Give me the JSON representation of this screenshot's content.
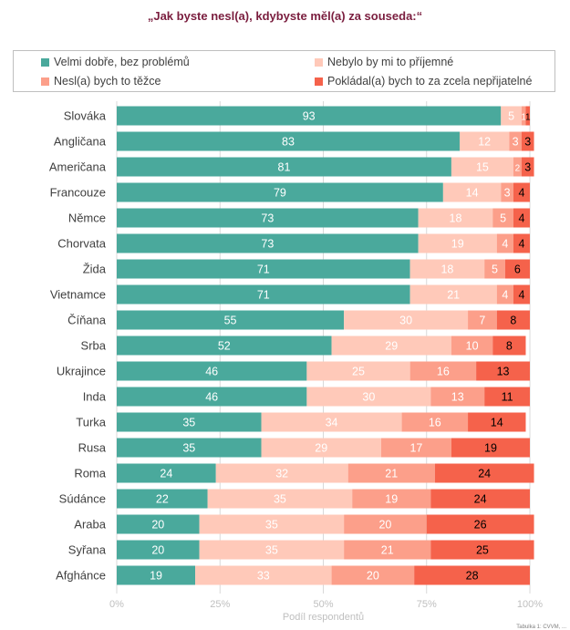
{
  "title": "„Jak byste nesl(a), kdybyste měl(a) za souseda:“",
  "footer_note": "Tabulka 1: CVVM, ...",
  "chart_data": {
    "type": "bar",
    "orientation": "horizontal",
    "stacked": true,
    "title": "„Jak byste nesl(a), kdybyste měl(a) za souseda:“",
    "xlabel": "Podíl respondentů",
    "ylabel": "",
    "xlim": [
      0,
      100
    ],
    "x_tick_labels": [
      "0%",
      "25%",
      "50%",
      "75%",
      "100%"
    ],
    "x_ticks": [
      0,
      25,
      50,
      75,
      100
    ],
    "grid": true,
    "legend_position": "top",
    "categories": [
      "Slováka",
      "Angličana",
      "Američana",
      "Francouze",
      "Němce",
      "Chorvata",
      "Žida",
      "Vietnamce",
      "Číňana",
      "Srba",
      "Ukrajince",
      "Inda",
      "Turka",
      "Rusa",
      "Roma",
      "Súdánce",
      "Araba",
      "Syřana",
      "Afghánce"
    ],
    "series": [
      {
        "name": "Velmi dobře, bez problémů",
        "color": "#4aa99c",
        "values": [
          93,
          83,
          81,
          79,
          73,
          73,
          71,
          71,
          55,
          52,
          46,
          46,
          35,
          35,
          24,
          22,
          20,
          20,
          19
        ]
      },
      {
        "name": "Nebylo by mi to příjemné",
        "color": "#ffc9b9",
        "values": [
          5,
          12,
          15,
          14,
          18,
          19,
          18,
          21,
          30,
          29,
          25,
          30,
          34,
          29,
          32,
          35,
          35,
          35,
          33
        ]
      },
      {
        "name": "Nesl(a) bych to těžce",
        "color": "#fc9f8a",
        "values": [
          1,
          3,
          2,
          3,
          5,
          4,
          5,
          4,
          7,
          10,
          16,
          13,
          16,
          17,
          21,
          19,
          20,
          21,
          20
        ]
      },
      {
        "name": "Pokládal(a) bych to za zcela nepřijatelné",
        "color": "#f5624b",
        "values": [
          1,
          3,
          3,
          4,
          4,
          4,
          6,
          4,
          8,
          8,
          13,
          11,
          14,
          19,
          24,
          24,
          26,
          25,
          28
        ]
      }
    ],
    "legend_entries": [
      {
        "name": "Velmi dobře, bez problémů",
        "color": "#4aa99c"
      },
      {
        "name": "Nebylo by mi to příjemné",
        "color": "#ffc9b9"
      },
      {
        "name": "Nesl(a) bych to těžce",
        "color": "#fc9f8a"
      },
      {
        "name": "Pokládal(a) bych to za zcela nepřijatelné",
        "color": "#f5624b"
      }
    ],
    "value_label_colors": [
      "#ffffff",
      "#ffffff",
      "#ffffff",
      "#000000"
    ],
    "axis_label_color": "#bfbfbf",
    "grid_color": "#d9d9d9"
  }
}
